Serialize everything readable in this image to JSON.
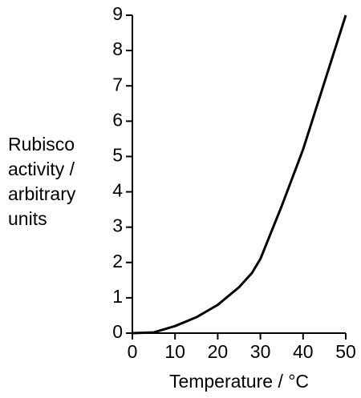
{
  "chart_data": {
    "type": "line",
    "xlabel": "Temperature / °C",
    "ylabel": [
      "Rubisco",
      "activity /",
      "arbitrary",
      "units"
    ],
    "x": [
      0,
      5,
      10,
      15,
      20,
      25,
      28,
      30,
      35,
      40,
      45,
      50
    ],
    "y": [
      0,
      0.02,
      0.2,
      0.45,
      0.8,
      1.3,
      1.7,
      2.1,
      3.6,
      5.2,
      7.1,
      9.0
    ],
    "color": "#000000",
    "xlim": [
      0,
      50
    ],
    "xticks": [
      0,
      10,
      20,
      30,
      40,
      50
    ],
    "ylim": [
      0,
      9
    ],
    "yticks": [
      0,
      1,
      2,
      3,
      4,
      5,
      6,
      7,
      8,
      9
    ],
    "grid": false
  }
}
